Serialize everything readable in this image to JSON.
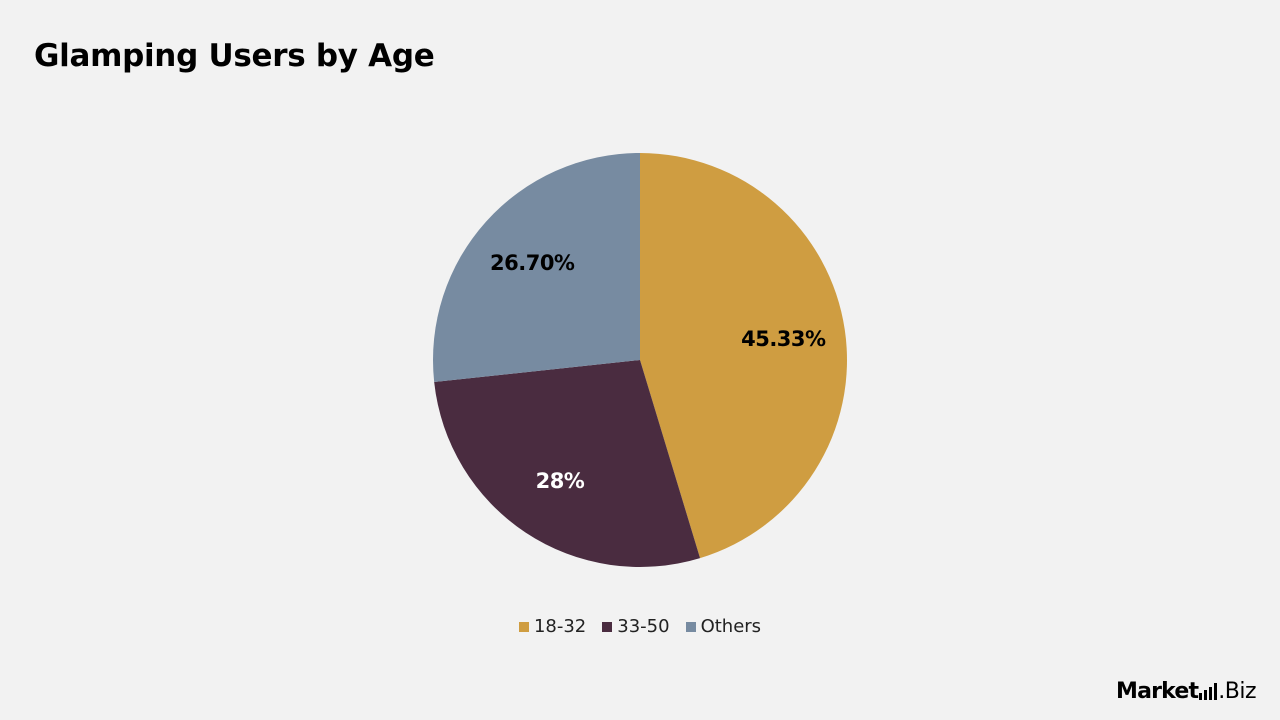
{
  "chart_data": {
    "type": "pie",
    "title": "Glamping Users by Age",
    "slices": [
      {
        "label": "18-32",
        "value": 45.33,
        "display": "45.33%",
        "color": "#cf9d41",
        "label_color": "#000000"
      },
      {
        "label": "33-50",
        "value": 28,
        "display": "28%",
        "color": "#4a2c40",
        "label_color": "#ffffff"
      },
      {
        "label": "Others",
        "value": 26.7,
        "display": "26.70%",
        "color": "#778ba1",
        "label_color": "#000000"
      }
    ],
    "start_angle_deg": 0,
    "direction": "clockwise",
    "legend_position": "bottom"
  },
  "brand": {
    "main": "Market",
    "suffix": ".Biz",
    "icon": "bar-chart-icon"
  },
  "colors": {
    "background": "#f2f2f2"
  }
}
